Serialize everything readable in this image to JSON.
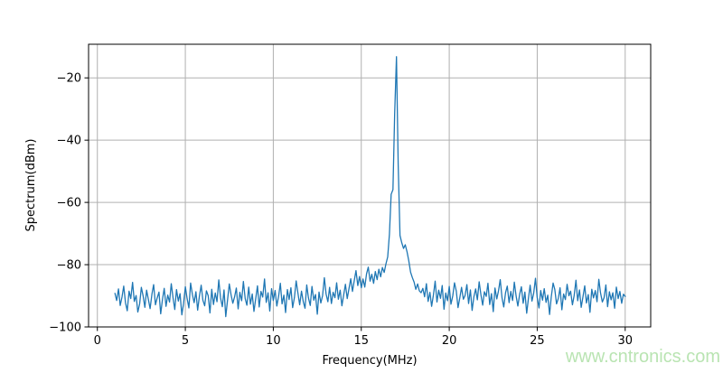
{
  "watermark": {
    "text": "www.cntronics.com",
    "color": "#b9e4b2"
  },
  "chart_data": {
    "type": "line",
    "title": "",
    "xlabel": "Frequency(MHz)",
    "ylabel": "Spectrum(dBm)",
    "x_unit": "MHz",
    "y_unit": "dBm",
    "xlim": [
      -0.5,
      31.45
    ],
    "ylim": [
      -100,
      -9.2
    ],
    "xticks": [
      0,
      5,
      10,
      15,
      20,
      25,
      30
    ],
    "xtick_labels": [
      "0",
      "5",
      "10",
      "15",
      "20",
      "25",
      "30"
    ],
    "yticks": [
      -20,
      -40,
      -60,
      -80,
      -100
    ],
    "ytick_labels": [
      "−20",
      "−40",
      "−60",
      "−80",
      "−100"
    ],
    "grid": true,
    "grid_color": "#b0b0b0",
    "spine_color": "#000000",
    "line_color": "#1f77b4",
    "legend": null,
    "series": [
      {
        "name": "spectrum",
        "x_start": 1.0,
        "x_step": 0.1,
        "values": [
          -89.2,
          -91.5,
          -87.8,
          -93.1,
          -90.4,
          -86.9,
          -92.3,
          -94.8,
          -88.5,
          -90.9,
          -85.7,
          -91.8,
          -89.9,
          -95.2,
          -92.6,
          -87.3,
          -90.1,
          -93.7,
          -88.2,
          -91.2,
          -94.1,
          -89.5,
          -86.4,
          -92.9,
          -90.7,
          -88.8,
          -95.8,
          -91.1,
          -87.6,
          -93.4,
          -89.8,
          -92.0,
          -86.1,
          -90.5,
          -94.4,
          -88.0,
          -91.7,
          -89.3,
          -96.1,
          -92.5,
          -87.1,
          -90.8,
          -93.9,
          -85.9,
          -89.6,
          -92.2,
          -88.7,
          -94.6,
          -90.2,
          -86.6,
          -91.4,
          -93.2,
          -88.4,
          -90.0,
          -95.5,
          -87.9,
          -92.8,
          -89.1,
          -91.9,
          -84.9,
          -90.6,
          -93.5,
          -88.1,
          -96.7,
          -91.3,
          -86.2,
          -89.7,
          -92.4,
          -90.3,
          -87.5,
          -94.2,
          -88.9,
          -91.6,
          -85.4,
          -90.9,
          -93.0,
          -87.2,
          -92.7,
          -89.4,
          -95.0,
          -91.0,
          -86.8,
          -93.6,
          -88.6,
          -90.4,
          -84.6,
          -92.1,
          -89.0,
          -94.9,
          -87.7,
          -91.5,
          -88.3,
          -93.3,
          -90.1,
          -86.0,
          -92.6,
          -89.8,
          -95.4,
          -88.0,
          -91.2,
          -87.4,
          -93.8,
          -90.5,
          -85.2,
          -89.2,
          -92.9,
          -88.5,
          -91.8,
          -94.0,
          -86.5,
          -90.7,
          -93.1,
          -87.0,
          -91.4,
          -89.6,
          -95.9,
          -88.8,
          -92.3,
          -90.0,
          -84.2,
          -89.4,
          -91.9,
          -87.3,
          -92.5,
          -88.9,
          -90.6,
          -85.8,
          -91.1,
          -88.2,
          -93.2,
          -89.7,
          -86.3,
          -90.9,
          -87.8,
          -84.5,
          -88.6,
          -85.1,
          -81.9,
          -86.7,
          -83.8,
          -87.4,
          -84.6,
          -87.2,
          -82.9,
          -80.8,
          -85.3,
          -83.1,
          -86.0,
          -82.2,
          -84.8,
          -81.5,
          -83.9,
          -80.9,
          -82.5,
          -79.8,
          -77.5,
          -70.2,
          -57.4,
          -55.9,
          -31.5,
          -13.2,
          -47.8,
          -70.6,
          -72.9,
          -74.8,
          -73.6,
          -75.9,
          -78.7,
          -82.4,
          -84.1,
          -85.6,
          -87.9,
          -86.2,
          -88.4,
          -89.0,
          -87.6,
          -90.3,
          -86.1,
          -91.8,
          -88.9,
          -93.4,
          -89.7,
          -85.3,
          -92.0,
          -88.2,
          -90.8,
          -86.7,
          -94.3,
          -89.1,
          -91.6,
          -87.0,
          -92.7,
          -90.0,
          -85.8,
          -88.5,
          -93.8,
          -90.6,
          -87.3,
          -91.1,
          -89.9,
          -86.4,
          -92.5,
          -88.1,
          -94.7,
          -90.4,
          -87.8,
          -91.3,
          -85.5,
          -89.6,
          -93.0,
          -88.7,
          -90.2,
          -86.0,
          -92.8,
          -89.3,
          -95.1,
          -87.5,
          -91.0,
          -88.4,
          -84.8,
          -90.7,
          -93.6,
          -89.0,
          -86.9,
          -92.2,
          -88.6,
          -91.5,
          -85.6,
          -90.1,
          -93.3,
          -89.5,
          -87.1,
          -92.4,
          -88.8,
          -95.6,
          -90.9,
          -86.6,
          -91.7,
          -89.2,
          -84.4,
          -90.5,
          -93.9,
          -88.3,
          -91.4,
          -87.7,
          -92.1,
          -89.8,
          -96.0,
          -90.3,
          -85.9,
          -88.0,
          -92.6,
          -90.8,
          -87.4,
          -94.5,
          -89.4,
          -91.2,
          -86.3,
          -90.0,
          -88.5,
          -92.9,
          -89.9,
          -85.0,
          -91.6,
          -88.1,
          -93.7,
          -90.4,
          -86.8,
          -92.3,
          -89.6,
          -95.3,
          -87.9,
          -90.7,
          -88.3,
          -91.9,
          -84.7,
          -89.1,
          -92.0,
          -90.6,
          -86.5,
          -93.5,
          -88.7,
          -91.3,
          -89.0,
          -94.0,
          -87.2,
          -90.9,
          -88.6,
          -92.4,
          -89.5,
          -90.2
        ]
      }
    ]
  }
}
